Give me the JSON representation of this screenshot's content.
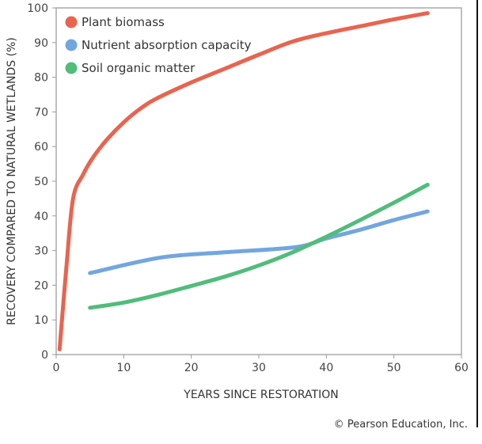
{
  "chart_data": {
    "type": "line",
    "title": "",
    "xlabel": "YEARS SINCE RESTORATION",
    "ylabel": "RECOVERY COMPARED TO NATURAL WETLANDS (%)",
    "xlim": [
      0,
      60
    ],
    "ylim": [
      0,
      100
    ],
    "xticks": [
      0,
      10,
      20,
      30,
      40,
      50,
      60
    ],
    "yticks": [
      0,
      10,
      20,
      30,
      40,
      50,
      60,
      70,
      80,
      90,
      100
    ],
    "grid": false,
    "legend_position": "top-left",
    "series": [
      {
        "name": "Plant biomass",
        "color": "#e8644f",
        "x": [
          0.5,
          1.5,
          2.5,
          4,
          5.5,
          7.5,
          10,
          12.5,
          15,
          20,
          25,
          30,
          35,
          40,
          45,
          50,
          55
        ],
        "y": [
          1.5,
          25,
          45,
          52,
          57,
          62,
          67,
          71,
          74,
          78.5,
          82.5,
          86.5,
          90.3,
          92.7,
          94.7,
          96.7,
          98.5
        ]
      },
      {
        "name": "Nutrient absorption capacity",
        "color": "#72a6de",
        "x": [
          5,
          15.5,
          25,
          35.5,
          40,
          45,
          50,
          55
        ],
        "y": [
          23.5,
          28,
          29.5,
          31,
          33.5,
          36,
          38.8,
          41.3
        ]
      },
      {
        "name": "Soil organic matter",
        "color": "#52bc7b",
        "x": [
          5,
          10,
          15,
          20,
          25,
          30,
          35,
          40,
          45,
          50,
          55
        ],
        "y": [
          13.5,
          15,
          17.2,
          19.8,
          22.5,
          25.7,
          29.5,
          34,
          38.8,
          43.8,
          49
        ]
      }
    ]
  },
  "copyright": "© Pearson Education, Inc."
}
